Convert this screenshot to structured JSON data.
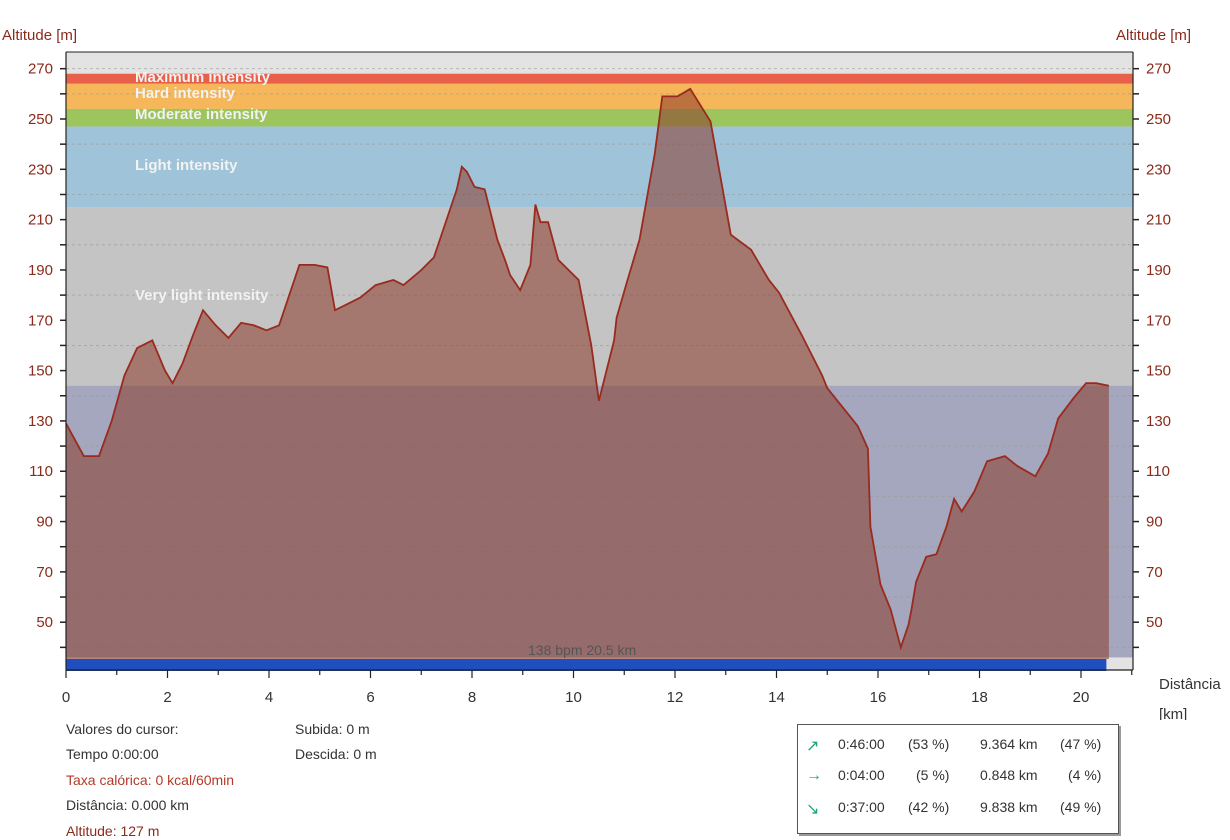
{
  "chart_data": {
    "type": "area",
    "y_axis_title_left": "Altitude [m]",
    "y_axis_title_right": "Altitude [m]",
    "x_axis_title": [
      "Distância",
      "[km]"
    ],
    "ylim": [
      30,
      276
    ],
    "xlim": [
      0,
      21
    ],
    "y_ticks": [
      270,
      250,
      230,
      210,
      190,
      170,
      150,
      130,
      110,
      90,
      70,
      50
    ],
    "x_ticks": [
      0,
      2,
      4,
      6,
      8,
      10,
      12,
      14,
      16,
      18,
      20
    ],
    "grid": "horizontal dashed",
    "zones": [
      {
        "label": "Maximum intensity",
        "from": 264,
        "to": 268,
        "color": "#e8604a"
      },
      {
        "label": "Hard intensity",
        "from": 254,
        "to": 264,
        "color": "#f5b759"
      },
      {
        "label": "Moderate intensity",
        "from": 247,
        "to": 254,
        "color": "#9dc55e"
      },
      {
        "label": "Light intensity",
        "from": 215,
        "to": 247,
        "color": "#9fc3d9"
      },
      {
        "label": "Very light intensity",
        "from": 144,
        "to": 215,
        "color": "#c4c4c4"
      },
      {
        "label": "",
        "from": 36,
        "to": 144,
        "color": "#a4a7bd"
      }
    ],
    "heart_rate_band": {
      "label": "138 bpm 20.5 km",
      "x_end": 20.5,
      "color": "#1f4fbf"
    },
    "series": [
      {
        "x": [
          0.0,
          0.35,
          0.65,
          0.9,
          1.15,
          1.4,
          1.7,
          1.95,
          2.1,
          2.3,
          2.5,
          2.7,
          2.95,
          3.2,
          3.45,
          3.7,
          3.95,
          4.2,
          4.6,
          4.9,
          5.15,
          5.3,
          5.5,
          5.8,
          6.1,
          6.45,
          6.65,
          7.0,
          7.25,
          7.5,
          7.7,
          7.8,
          7.9,
          8.05,
          8.25,
          8.5,
          8.65,
          8.75,
          8.95,
          9.15,
          9.25,
          9.35,
          9.5,
          9.7,
          10.1,
          10.35,
          10.5,
          10.8,
          10.85,
          11.05,
          11.3,
          11.6,
          11.75,
          11.9,
          12.05,
          12.3,
          12.7,
          13.1,
          13.5,
          13.85,
          14.05,
          14.5,
          14.9,
          15.0,
          15.6,
          15.8,
          15.85,
          16.05,
          16.25,
          16.45,
          16.6,
          16.65,
          16.75,
          16.95,
          17.15,
          17.35,
          17.5,
          17.65,
          17.9,
          18.15,
          18.5,
          18.75,
          19.1,
          19.35,
          19.55,
          19.85,
          20.1,
          20.3,
          20.55
        ],
        "y": [
          129,
          116,
          116,
          130,
          148,
          159,
          162,
          150,
          145,
          153,
          164,
          174,
          168,
          163,
          169,
          168,
          166,
          168,
          192,
          192,
          191,
          174,
          176,
          179,
          184,
          186,
          184,
          190,
          195,
          210,
          222,
          231,
          229,
          223,
          222,
          202,
          194,
          188,
          182,
          192,
          216,
          209,
          209,
          194,
          186,
          160,
          138,
          162,
          171,
          185,
          202,
          236,
          259,
          259,
          259,
          262,
          249,
          204,
          198,
          186,
          181,
          164,
          148,
          143,
          128,
          119,
          88,
          65,
          55,
          40,
          49,
          54,
          66,
          76,
          77,
          88,
          99,
          94,
          102,
          114,
          116,
          112,
          108,
          117,
          131,
          139,
          145,
          145,
          144
        ]
      }
    ]
  },
  "cursor": {
    "title": "Valores do cursor:",
    "time": "Tempo 0:00:00",
    "calories": "Taxa calórica: 0 kcal/60min",
    "distance": "Distância: 0.000 km",
    "altitude": "Altitude: 127 m",
    "ascent": "Subida: 0 m",
    "descent": "Descida: 0 m"
  },
  "stats": [
    {
      "icon": "arrow-up-right-icon",
      "glyph": "↗",
      "time": "0:46:00",
      "time_pct": "(53 %)",
      "dist": "9.364 km",
      "dist_pct": "(47 %)"
    },
    {
      "icon": "arrow-right-icon",
      "glyph": "→",
      "time": "0:04:00",
      "time_pct": "(5 %)",
      "dist": "0.848 km",
      "dist_pct": "(4 %)"
    },
    {
      "icon": "arrow-down-right-icon",
      "glyph": "↘",
      "time": "0:37:00",
      "time_pct": "(42 %)",
      "dist": "9.838 km",
      "dist_pct": "(49 %)"
    }
  ],
  "colors": {
    "area_fill": "#8b3a2a",
    "line": "#9a2a1e",
    "axis_text": "#8b2a1a"
  }
}
